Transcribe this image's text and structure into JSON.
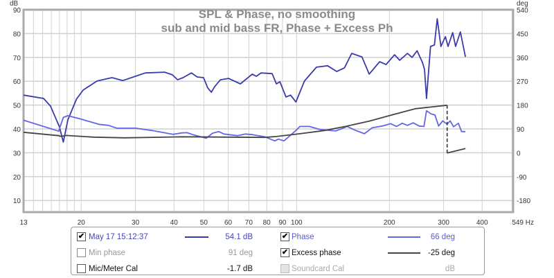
{
  "chart_data": {
    "type": "line",
    "title": "SPL & Phase, no smoothing",
    "subtitle": "sub and mid bass FR, Phase + Excess Ph",
    "xscale": "log",
    "xlim": [
      13,
      549
    ],
    "ylim_left": [
      5,
      90
    ],
    "ylabel_left": "dB",
    "ylim_right": [
      -630,
      540
    ],
    "ylabel_right": "deg",
    "grid": true,
    "x_ticks": [
      "13",
      "20",
      "30",
      "40",
      "50",
      "60",
      "70",
      "80",
      "90",
      "100",
      "200",
      "300",
      "400",
      "549 Hz"
    ],
    "x_tick_values": [
      13,
      20,
      30,
      40,
      50,
      60,
      70,
      80,
      90,
      100,
      200,
      300,
      400,
      549
    ],
    "y_ticks_left": [
      10,
      20,
      30,
      40,
      50,
      60,
      70,
      80,
      90
    ],
    "y_ticks_right": [
      -180,
      -90,
      0,
      90,
      180,
      270,
      360,
      450,
      540
    ],
    "colors": {
      "spl": "#3a3aaa",
      "phase": "#6464e6",
      "excess": "#444444",
      "grid": "#d0d0d0",
      "title": "#8a8a8a"
    },
    "series": [
      {
        "name": "May 17 15:12:37",
        "axis": "left",
        "unit": "dB",
        "points": [
          [
            13,
            54.2
          ],
          [
            15.1,
            52.8
          ],
          [
            15.9,
            49.6
          ],
          [
            17,
            40.9
          ],
          [
            17.5,
            34.5
          ],
          [
            18.1,
            43.8
          ],
          [
            19.3,
            52.5
          ],
          [
            20.3,
            56.3
          ],
          [
            22.5,
            60.1
          ],
          [
            24.5,
            61.2
          ],
          [
            25.2,
            61.5
          ],
          [
            27.3,
            60.3
          ],
          [
            30,
            62.1
          ],
          [
            32.3,
            63.5
          ],
          [
            37.3,
            63.8
          ],
          [
            39.5,
            62.7
          ],
          [
            41.1,
            60.6
          ],
          [
            42.8,
            61.5
          ],
          [
            45.6,
            63.5
          ],
          [
            47.6,
            61.8
          ],
          [
            49.9,
            61.5
          ],
          [
            51.5,
            57.2
          ],
          [
            52.9,
            55.4
          ],
          [
            54.2,
            57.7
          ],
          [
            56.6,
            60.6
          ],
          [
            60.1,
            61.2
          ],
          [
            65.7,
            58.9
          ],
          [
            71.8,
            63
          ],
          [
            74,
            62.1
          ],
          [
            76.7,
            63.5
          ],
          [
            83.3,
            63.2
          ],
          [
            86,
            58.9
          ],
          [
            88.3,
            59.8
          ],
          [
            92.4,
            53.4
          ],
          [
            95.6,
            54.2
          ],
          [
            99.5,
            51.3
          ],
          [
            106,
            60.1
          ],
          [
            116,
            65.9
          ],
          [
            126,
            66.5
          ],
          [
            135,
            64.1
          ],
          [
            143,
            65.6
          ],
          [
            151,
            71.7
          ],
          [
            163,
            70.2
          ],
          [
            172,
            63
          ],
          [
            186,
            68.2
          ],
          [
            195,
            67
          ],
          [
            208,
            71.1
          ],
          [
            216,
            68.8
          ],
          [
            229,
            71.7
          ],
          [
            237,
            70
          ],
          [
            246,
            72.8
          ],
          [
            256,
            67.9
          ],
          [
            260,
            65
          ],
          [
            264,
            52.8
          ],
          [
            272,
            74.6
          ],
          [
            280,
            75.2
          ],
          [
            286,
            86.2
          ],
          [
            294,
            74.6
          ],
          [
            304,
            78.7
          ],
          [
            310,
            74.6
          ],
          [
            321,
            80.4
          ],
          [
            328,
            74.6
          ],
          [
            340,
            80.7
          ],
          [
            353,
            70.2
          ]
        ]
      },
      {
        "name": "Phase",
        "axis": "right",
        "unit": "deg",
        "points": [
          [
            13,
            66
          ],
          [
            16.9,
            -17
          ],
          [
            17.5,
            87
          ],
          [
            18.1,
            100
          ],
          [
            20,
            74
          ],
          [
            22.8,
            35
          ],
          [
            24.5,
            27
          ],
          [
            26.1,
            6
          ],
          [
            30,
            6
          ],
          [
            34,
            -12
          ],
          [
            39.7,
            -41
          ],
          [
            42.4,
            -30
          ],
          [
            44.1,
            -28
          ],
          [
            46.5,
            -46
          ],
          [
            50.9,
            -70
          ],
          [
            53.3,
            -33
          ],
          [
            55.9,
            -20
          ],
          [
            58.1,
            -38
          ],
          [
            64.3,
            -51
          ],
          [
            68.2,
            -38
          ],
          [
            71.8,
            -43
          ],
          [
            78.8,
            -59
          ],
          [
            85,
            -90
          ],
          [
            87.3,
            -77
          ],
          [
            91,
            -90
          ],
          [
            94.5,
            -57
          ],
          [
            100,
            -7
          ],
          [
            102.5,
            19
          ],
          [
            110,
            19
          ],
          [
            119,
            -4
          ],
          [
            134,
            -15
          ],
          [
            146,
            19
          ],
          [
            154,
            -7
          ],
          [
            166,
            -36
          ],
          [
            176,
            9
          ],
          [
            190,
            22
          ],
          [
            202,
            40
          ],
          [
            211,
            19
          ],
          [
            220,
            43
          ],
          [
            229,
            27
          ],
          [
            239,
            46
          ],
          [
            250,
            22
          ],
          [
            259,
            19
          ],
          [
            264,
            137
          ],
          [
            273,
            114
          ],
          [
            281,
            106
          ],
          [
            289,
            22
          ],
          [
            298,
            61
          ],
          [
            308,
            35
          ],
          [
            315,
            61
          ],
          [
            323,
            17
          ],
          [
            335,
            43
          ],
          [
            343,
            -20
          ],
          [
            353,
            -20
          ]
        ]
      },
      {
        "name": "Excess phase",
        "axis": "right",
        "unit": "deg",
        "segments": [
          [
            [
              13,
              -25
            ],
            [
              16.9,
              -51
            ],
            [
              17.2,
              -56
            ],
            [
              17.9,
              -49
            ],
            [
              21.9,
              -62
            ],
            [
              27.7,
              -67
            ],
            [
              42.8,
              -59
            ],
            [
              60,
              -62
            ],
            [
              78.8,
              -64
            ],
            [
              86,
              -57
            ],
            [
              102.5,
              -36
            ],
            [
              123,
              -12
            ],
            [
              144,
              19
            ],
            [
              172,
              59
            ],
            [
              204,
              106
            ],
            [
              243,
              153
            ],
            [
              308,
              179
            ]
          ],
          [
            [
              308,
              -182
            ],
            [
              353,
              -148
            ]
          ]
        ]
      }
    ]
  },
  "legend": {
    "rows": [
      {
        "label": "May 17 15:12:37",
        "checked": true,
        "value": "54.1 dB"
      },
      {
        "label": "Min phase",
        "checked": false,
        "value": "91 deg"
      },
      {
        "label": "Mic/Meter Cal",
        "checked": false,
        "value": "-1.7 dB"
      },
      {
        "label": "Phase",
        "checked": true,
        "value": "66 deg"
      },
      {
        "label": "Excess phase",
        "checked": true,
        "value": "-25 deg"
      },
      {
        "label": "Soundcard Cal",
        "checked": false,
        "value": "dB"
      }
    ],
    "check_mark": "✔"
  }
}
